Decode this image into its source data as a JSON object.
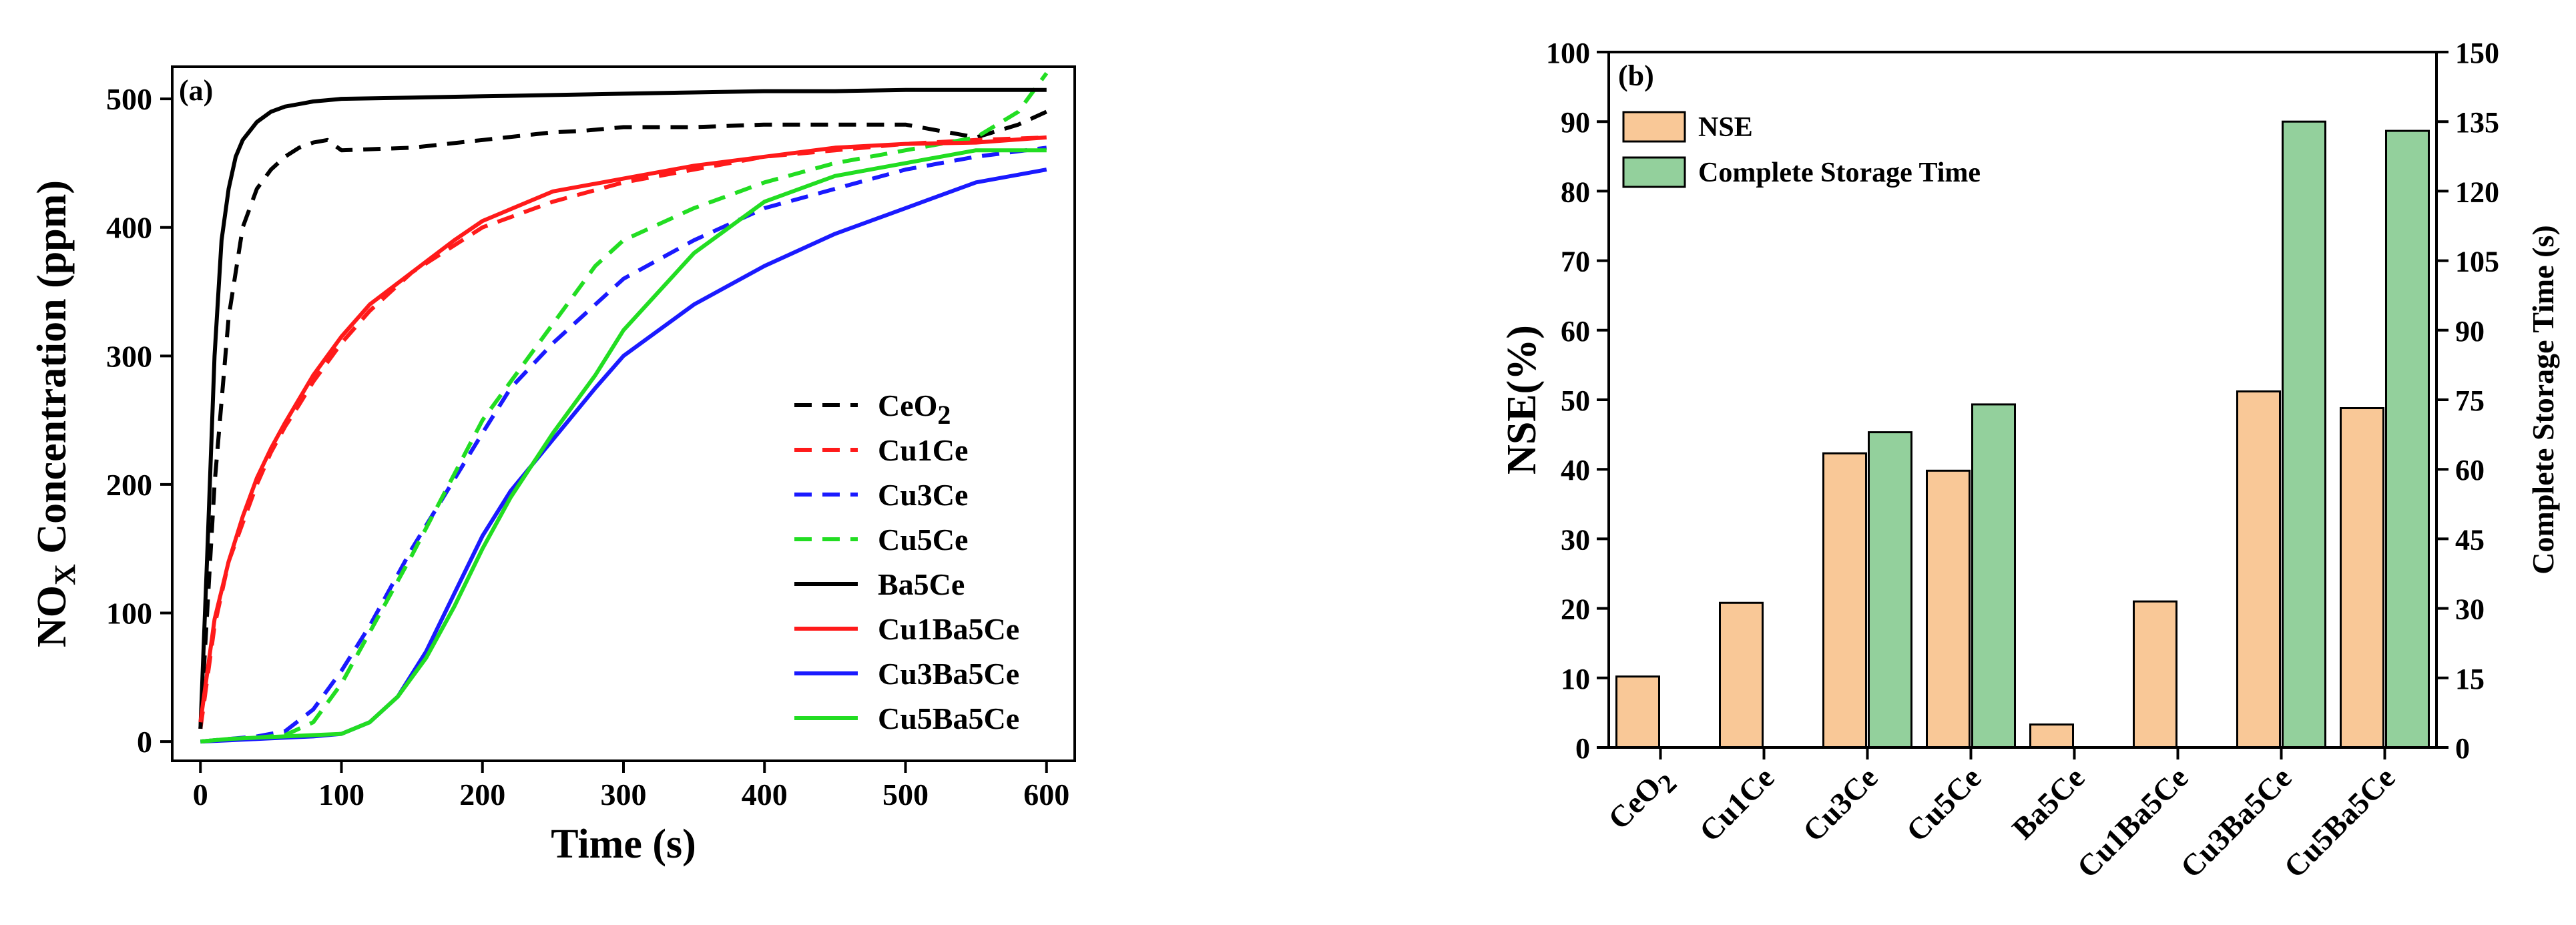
{
  "colors": {
    "black": "#000000",
    "red": "#ff1a1a",
    "blue": "#1a1aff",
    "green": "#22dd22",
    "nse_fill": "#f9c897",
    "time_fill": "#93d09c",
    "bar_edge": "#000000"
  },
  "chart_data": [
    {
      "type": "line",
      "panel_label": "(a)",
      "title": "",
      "xlabel": "Time (s)",
      "ylabel": "NOX Concentration (ppm)",
      "ylabel_parts": [
        "NO",
        "X",
        " Concentration (ppm)"
      ],
      "xlim": [
        -20,
        620
      ],
      "ylim": [
        -15,
        525
      ],
      "xticks": [
        0,
        100,
        200,
        300,
        400,
        500,
        600
      ],
      "yticks": [
        0,
        100,
        200,
        300,
        400,
        500
      ],
      "legend_position": "bottom-right",
      "series": [
        {
          "name": "CeO2",
          "legend_main": "CeO",
          "legend_sub": "2",
          "color": "#000000",
          "style": "dashed",
          "x": [
            0,
            10,
            20,
            30,
            40,
            50,
            60,
            70,
            80,
            90,
            100,
            150,
            200,
            250,
            270,
            300,
            350,
            400,
            450,
            500,
            550,
            580,
            600
          ],
          "y": [
            10,
            200,
            330,
            400,
            430,
            445,
            455,
            462,
            466,
            468,
            460,
            462,
            468,
            474,
            475,
            478,
            478,
            480,
            480,
            480,
            470,
            480,
            490
          ]
        },
        {
          "name": "Cu1Ce",
          "legend_main": "Cu1Ce",
          "legend_sub": "",
          "color": "#ff1a1a",
          "style": "dashed",
          "x": [
            0,
            10,
            20,
            30,
            40,
            50,
            60,
            70,
            80,
            100,
            120,
            150,
            200,
            250,
            300,
            350,
            400,
            450,
            500,
            550,
            600
          ],
          "y": [
            10,
            90,
            140,
            170,
            200,
            225,
            245,
            262,
            280,
            310,
            335,
            365,
            400,
            420,
            435,
            445,
            455,
            460,
            465,
            468,
            470
          ]
        },
        {
          "name": "Cu3Ce",
          "legend_main": "Cu3Ce",
          "legend_sub": "",
          "color": "#1a1aff",
          "style": "dashed",
          "x": [
            0,
            20,
            40,
            60,
            80,
            100,
            120,
            150,
            200,
            220,
            250,
            280,
            300,
            350,
            400,
            450,
            500,
            550,
            600
          ],
          "y": [
            0,
            2,
            4,
            8,
            25,
            55,
            90,
            150,
            240,
            275,
            310,
            340,
            360,
            390,
            415,
            430,
            445,
            455,
            462
          ]
        },
        {
          "name": "Cu5Ce",
          "legend_main": "Cu5Ce",
          "legend_sub": "",
          "color": "#22dd22",
          "style": "dashed",
          "x": [
            0,
            20,
            40,
            60,
            80,
            100,
            120,
            150,
            200,
            250,
            280,
            300,
            350,
            400,
            450,
            500,
            550,
            580,
            600
          ],
          "y": [
            0,
            2,
            3,
            5,
            15,
            45,
            85,
            145,
            250,
            325,
            370,
            390,
            415,
            435,
            450,
            460,
            470,
            490,
            520
          ]
        },
        {
          "name": "Ba5Ce",
          "legend_main": "Ba5Ce",
          "legend_sub": "",
          "color": "#000000",
          "style": "solid",
          "x": [
            0,
            5,
            10,
            15,
            20,
            25,
            30,
            40,
            50,
            60,
            70,
            80,
            90,
            100,
            150,
            200,
            250,
            300,
            350,
            400,
            450,
            500,
            550,
            600
          ],
          "y": [
            10,
            150,
            300,
            390,
            430,
            455,
            468,
            482,
            490,
            494,
            496,
            498,
            499,
            500,
            501,
            502,
            503,
            504,
            505,
            506,
            506,
            507,
            507,
            507
          ]
        },
        {
          "name": "Cu1Ba5Ce",
          "legend_main": "Cu1Ba5Ce",
          "legend_sub": "",
          "color": "#ff1a1a",
          "style": "solid",
          "x": [
            0,
            10,
            20,
            30,
            40,
            50,
            60,
            80,
            100,
            120,
            150,
            180,
            200,
            250,
            300,
            350,
            400,
            450,
            500,
            550,
            600
          ],
          "y": [
            15,
            95,
            140,
            175,
            205,
            228,
            248,
            285,
            315,
            340,
            365,
            390,
            405,
            428,
            438,
            448,
            455,
            462,
            465,
            466,
            470
          ]
        },
        {
          "name": "Cu3Ba5Ce",
          "legend_main": "Cu3Ba5Ce",
          "legend_sub": "",
          "color": "#1a1aff",
          "style": "solid",
          "x": [
            0,
            20,
            40,
            60,
            80,
            100,
            120,
            140,
            160,
            180,
            200,
            220,
            250,
            280,
            300,
            350,
            400,
            450,
            500,
            550,
            600
          ],
          "y": [
            0,
            1,
            2,
            3,
            4,
            6,
            15,
            35,
            70,
            115,
            160,
            195,
            235,
            275,
            300,
            340,
            370,
            395,
            415,
            435,
            445
          ]
        },
        {
          "name": "Cu5Ba5Ce",
          "legend_main": "Cu5Ba5Ce",
          "legend_sub": "",
          "color": "#22dd22",
          "style": "solid",
          "x": [
            0,
            20,
            40,
            60,
            80,
            100,
            120,
            140,
            160,
            180,
            200,
            220,
            250,
            280,
            300,
            350,
            400,
            450,
            500,
            550,
            600
          ],
          "y": [
            0,
            2,
            3,
            4,
            5,
            6,
            15,
            35,
            65,
            105,
            150,
            190,
            240,
            285,
            320,
            380,
            420,
            440,
            450,
            460,
            460
          ]
        }
      ]
    },
    {
      "type": "bar",
      "panel_label": "(b)",
      "title": "",
      "xlabel": "",
      "ylabel": "NSE(%)",
      "y2label": "Complete Storage Time (s)",
      "ylim": [
        0,
        100
      ],
      "y2lim": [
        0,
        150
      ],
      "yticks": [
        0,
        10,
        20,
        30,
        40,
        50,
        60,
        70,
        80,
        90,
        100
      ],
      "y2ticks": [
        0,
        15,
        30,
        45,
        60,
        75,
        90,
        105,
        120,
        135,
        150
      ],
      "legend_position": "top-left",
      "categories": [
        "CeO2",
        "Cu1Ce",
        "Cu3Ce",
        "Cu5Ce",
        "Ba5Ce",
        "Cu1Ba5Ce",
        "Cu3Ba5Ce",
        "Cu5Ba5Ce"
      ],
      "category_parts": [
        [
          "CeO",
          "2"
        ],
        [
          "Cu1Ce",
          ""
        ],
        [
          "Cu3Ce",
          ""
        ],
        [
          "Cu5Ce",
          ""
        ],
        [
          "Ba5Ce",
          ""
        ],
        [
          "Cu1Ba5Ce",
          ""
        ],
        [
          "Cu3Ba5Ce",
          ""
        ],
        [
          "Cu5Ba5Ce",
          ""
        ]
      ],
      "series": [
        {
          "name": "NSE",
          "axis": "left",
          "color": "#f9c897",
          "values": [
            10.2,
            20.8,
            42.3,
            39.8,
            3.3,
            21.0,
            51.2,
            48.8
          ]
        },
        {
          "name": "Complete Storage Time",
          "axis": "right",
          "color": "#93d09c",
          "values": [
            null,
            null,
            68,
            74,
            null,
            null,
            135,
            133
          ]
        }
      ]
    }
  ]
}
